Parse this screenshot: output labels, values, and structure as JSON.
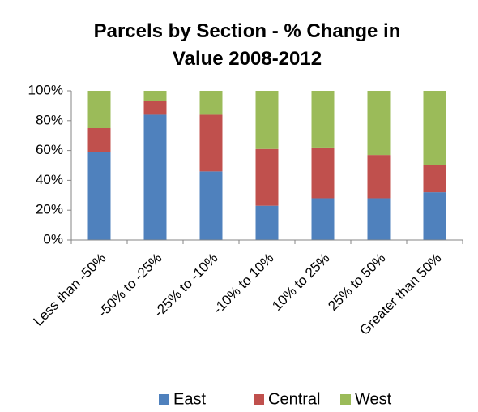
{
  "chart_data": {
    "type": "stacked_bar",
    "title": "Parcels by Section - % Change in Value 2008-2012",
    "categories": [
      "Less than -50%",
      "-50% to -25%",
      "-25% to -10%",
      "-10% to 10%",
      "10% to 25%",
      "25% to 50%",
      "Greater than 50%"
    ],
    "series": [
      {
        "name": "East",
        "color": "#4f81bd",
        "values": [
          59,
          84,
          46,
          23,
          28,
          28,
          32
        ]
      },
      {
        "name": "Central",
        "color": "#c0504d",
        "values": [
          16,
          9,
          38,
          38,
          34,
          29,
          18
        ]
      },
      {
        "name": "West",
        "color": "#9bbb59",
        "values": [
          25,
          7,
          16,
          39,
          38,
          43,
          50
        ]
      }
    ],
    "ylim": [
      0,
      100
    ],
    "yticks": [
      {
        "value": 0,
        "label": "0%"
      },
      {
        "value": 20,
        "label": "20%"
      },
      {
        "value": 40,
        "label": "40%"
      },
      {
        "value": 60,
        "label": "60%"
      },
      {
        "value": 80,
        "label": "80%"
      },
      {
        "value": 100,
        "label": "100%"
      }
    ],
    "grid": false,
    "legend": "bottom"
  }
}
